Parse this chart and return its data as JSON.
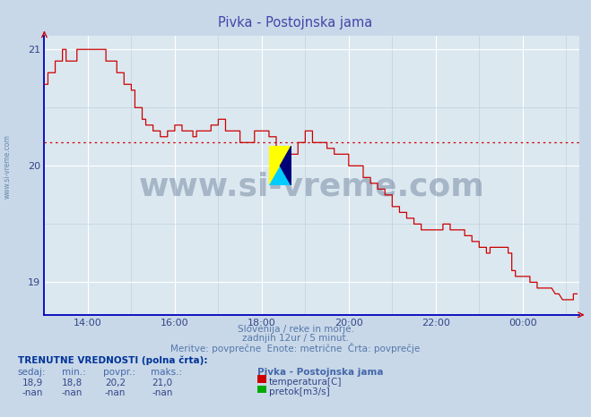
{
  "title": "Pivka - Postojnska jama",
  "title_color": "#4444aa",
  "bg_color": "#c8d8e8",
  "plot_bg_color": "#dce8f0",
  "grid_color_major": "#ffffff",
  "grid_color_minor": "#b8ccd8",
  "line_color": "#cc0000",
  "avg_line_color": "#cc0000",
  "avg_line_value": 20.2,
  "border_color_bottom": "#0000bb",
  "border_color_left": "#0000bb",
  "yticks": [
    19,
    20,
    21
  ],
  "ylim": [
    18.72,
    21.12
  ],
  "xlim_start": 13.0,
  "xlim_end": 25.3,
  "xtick_labels": [
    "14:00",
    "16:00",
    "18:00",
    "20:00",
    "22:00",
    "00:00"
  ],
  "xtick_positions": [
    14,
    16,
    18,
    20,
    22,
    24
  ],
  "subtitle1": "Slovenija / reke in morje.",
  "subtitle2": "zadnjih 12ur / 5 minut.",
  "subtitle3": "Meritve: povprečne  Enote: metrične  Črta: povprečje",
  "footer_title": "TRENUTNE VREDNOSTI (polna črta):",
  "col_headers": [
    "sedaj:",
    "min.:",
    "povpr.:",
    "maks.:"
  ],
  "temp_values": [
    "18,9",
    "18,8",
    "20,2",
    "21,0"
  ],
  "flow_values": [
    "-nan",
    "-nan",
    "-nan",
    "-nan"
  ],
  "station_name": "Pivka - Postojnska jama",
  "legend_temp": "temperatura[C]",
  "legend_flow": "pretok[m3/s]",
  "temp_color": "#cc0000",
  "flow_color": "#00aa00",
  "watermark_text": "www.si-vreme.com",
  "watermark_color": "#1a3560",
  "watermark_alpha": 0.28,
  "sidebar_text": "www.si-vreme.com",
  "sidebar_color": "#6688aa",
  "temperature_data_x": [
    13.0,
    13.083,
    13.083,
    13.25,
    13.25,
    13.417,
    13.417,
    13.5,
    13.5,
    13.75,
    13.75,
    14.083,
    14.083,
    14.417,
    14.417,
    14.667,
    14.667,
    14.833,
    14.833,
    15.0,
    15.0,
    15.083,
    15.083,
    15.25,
    15.25,
    15.333,
    15.333,
    15.5,
    15.5,
    15.667,
    15.667,
    15.833,
    15.833,
    16.0,
    16.0,
    16.167,
    16.167,
    16.417,
    16.417,
    16.5,
    16.5,
    16.667,
    16.667,
    16.833,
    16.833,
    17.0,
    17.0,
    17.167,
    17.167,
    17.5,
    17.5,
    17.667,
    17.667,
    17.833,
    17.833,
    18.0,
    18.0,
    18.167,
    18.167,
    18.333,
    18.333,
    18.667,
    18.667,
    18.833,
    18.833,
    19.0,
    19.0,
    19.167,
    19.167,
    19.333,
    19.333,
    19.5,
    19.5,
    19.667,
    19.667,
    19.833,
    19.833,
    20.0,
    20.0,
    20.167,
    20.167,
    20.333,
    20.333,
    20.5,
    20.5,
    20.667,
    20.667,
    20.833,
    20.833,
    21.0,
    21.0,
    21.167,
    21.167,
    21.333,
    21.333,
    21.5,
    21.5,
    21.667,
    21.667,
    21.833,
    21.833,
    22.0,
    22.0,
    22.167,
    22.167,
    22.333,
    22.333,
    22.5,
    22.5,
    22.667,
    22.667,
    22.833,
    22.833,
    23.0,
    23.0,
    23.167,
    23.167,
    23.25,
    23.25,
    23.333,
    23.333,
    23.5,
    23.5,
    23.667,
    23.667,
    23.75,
    23.75,
    23.833,
    23.833,
    24.0,
    24.0,
    24.167,
    24.167,
    24.333,
    24.333,
    24.5,
    24.5,
    24.583,
    24.583,
    24.667,
    24.667,
    24.75,
    24.75,
    24.833,
    24.833,
    24.917,
    24.917,
    25.0,
    25.0,
    25.083,
    25.083,
    25.167,
    25.167,
    25.25
  ],
  "temperature_data_y": [
    20.7,
    20.7,
    20.8,
    20.8,
    20.9,
    20.9,
    21.0,
    21.0,
    20.9,
    20.9,
    21.0,
    21.0,
    21.0,
    21.0,
    20.9,
    20.9,
    20.8,
    20.8,
    20.7,
    20.7,
    20.65,
    20.65,
    20.5,
    20.5,
    20.4,
    20.4,
    20.35,
    20.35,
    20.3,
    20.3,
    20.25,
    20.25,
    20.3,
    20.3,
    20.35,
    20.35,
    20.3,
    20.3,
    20.25,
    20.25,
    20.3,
    20.3,
    20.3,
    20.3,
    20.35,
    20.35,
    20.4,
    20.4,
    20.3,
    20.3,
    20.2,
    20.2,
    20.2,
    20.2,
    20.3,
    20.3,
    20.3,
    20.3,
    20.25,
    20.25,
    20.1,
    20.1,
    20.1,
    20.1,
    20.2,
    20.2,
    20.3,
    20.3,
    20.2,
    20.2,
    20.2,
    20.2,
    20.15,
    20.15,
    20.1,
    20.1,
    20.1,
    20.1,
    20.0,
    20.0,
    20.0,
    20.0,
    19.9,
    19.9,
    19.85,
    19.85,
    19.8,
    19.8,
    19.75,
    19.75,
    19.65,
    19.65,
    19.6,
    19.6,
    19.55,
    19.55,
    19.5,
    19.5,
    19.45,
    19.45,
    19.45,
    19.45,
    19.45,
    19.45,
    19.5,
    19.5,
    19.45,
    19.45,
    19.45,
    19.45,
    19.4,
    19.4,
    19.35,
    19.35,
    19.3,
    19.3,
    19.25,
    19.25,
    19.3,
    19.3,
    19.3,
    19.3,
    19.3,
    19.3,
    19.25,
    19.25,
    19.1,
    19.1,
    19.05,
    19.05,
    19.05,
    19.05,
    19.0,
    19.0,
    18.95,
    18.95,
    18.95,
    18.95,
    18.95,
    18.95,
    18.95,
    18.9,
    18.9,
    18.9,
    18.9,
    18.85,
    18.85,
    18.85,
    18.85,
    18.85,
    18.85,
    18.85,
    18.9,
    18.9
  ]
}
